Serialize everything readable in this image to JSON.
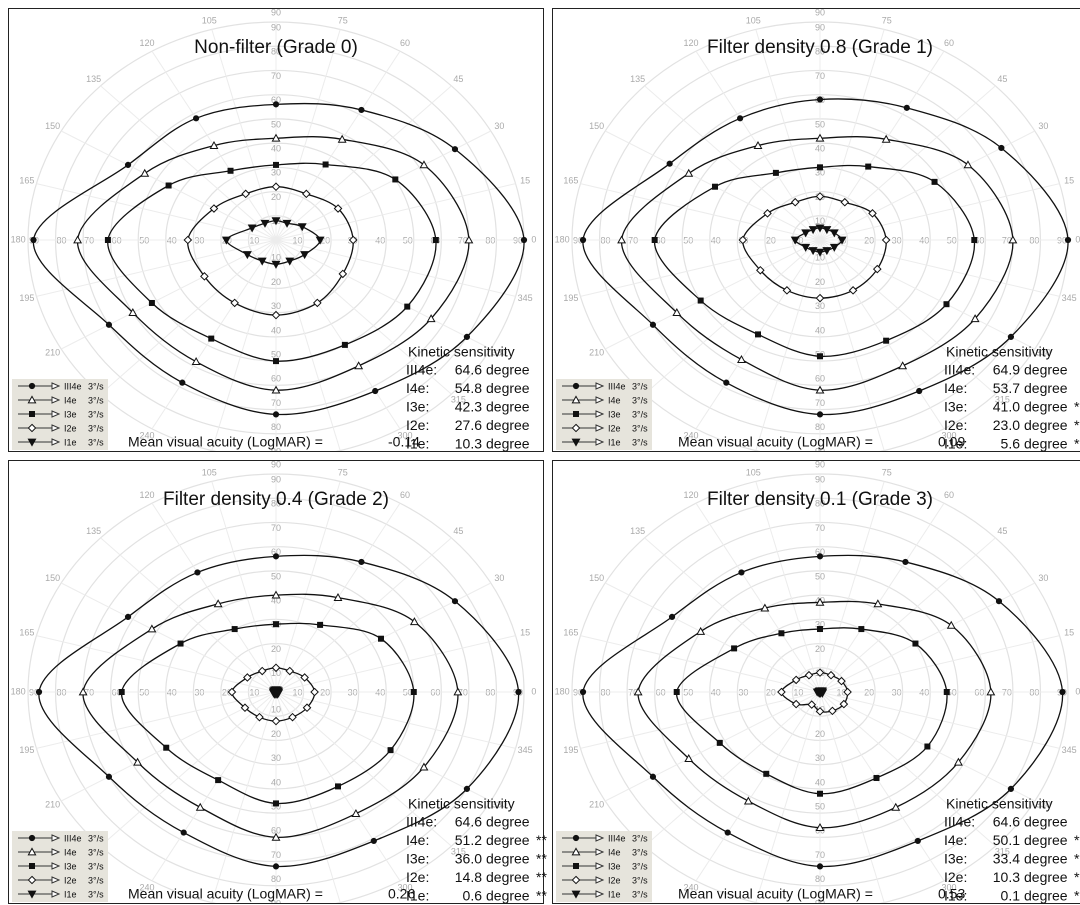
{
  "chart_data": [
    {
      "type": "polar",
      "title": "Non-filter (Grade 0)",
      "theta": [
        0,
        30,
        60,
        90,
        120,
        150,
        180,
        210,
        240,
        270,
        300,
        330
      ],
      "rticks": [
        10,
        20,
        30,
        40,
        50,
        60,
        70,
        80,
        90
      ],
      "rlim": [
        0,
        90
      ],
      "angle_ticks": [
        0,
        15,
        30,
        45,
        60,
        75,
        90,
        105,
        120,
        135,
        150,
        165,
        180,
        195,
        210,
        225,
        240,
        255,
        270,
        285,
        300,
        315,
        330,
        345
      ],
      "series": [
        {
          "name": "III4e",
          "speed": "3°/s",
          "marker": "circle",
          "color": "#111111",
          "values": [
            90,
            75,
            62,
            56,
            58,
            62,
            88,
            70,
            68,
            72,
            72,
            80
          ]
        },
        {
          "name": "I4e",
          "speed": "3°/s",
          "marker": "triangle",
          "color": "#111111",
          "values": [
            70,
            62,
            48,
            42,
            45,
            55,
            72,
            60,
            58,
            62,
            60,
            65
          ]
        },
        {
          "name": "I3e",
          "speed": "3°/s",
          "marker": "square",
          "color": "#111111",
          "values": [
            58,
            50,
            36,
            31,
            33,
            45,
            61,
            52,
            47,
            50,
            50,
            55
          ]
        },
        {
          "name": "I2e",
          "speed": "3°/s",
          "marker": "diamond",
          "color": "#111111",
          "values": [
            28,
            26,
            22,
            22,
            22,
            26,
            32,
            30,
            30,
            31,
            30,
            28
          ]
        },
        {
          "name": "I1e",
          "speed": "3°/s",
          "marker": "itriangle",
          "color": "#111111",
          "values": [
            16,
            11,
            8,
            8,
            8,
            10,
            18,
            12,
            10,
            10,
            10,
            12
          ]
        }
      ],
      "kinetic": {
        "title": "Kinetic sensitivity",
        "unit": "degree",
        "rows": [
          {
            "label": "III4e:",
            "value": 64.6
          },
          {
            "label": "I4e:",
            "value": 54.8
          },
          {
            "label": "I3e:",
            "value": 42.3
          },
          {
            "label": "I2e:",
            "value": 27.6
          },
          {
            "label": "I1e:",
            "value": 10.3
          }
        ]
      },
      "acuity_label": "Mean visual acuity (LogMAR) =",
      "acuity": -0.14
    },
    {
      "type": "polar",
      "title": "Filter density 0.8 (Grade 1)",
      "theta": [
        0,
        30,
        60,
        90,
        120,
        150,
        180,
        210,
        240,
        270,
        300,
        330
      ],
      "rticks": [
        10,
        20,
        30,
        40,
        50,
        60,
        70,
        80,
        90
      ],
      "rlim": [
        0,
        90
      ],
      "angle_ticks": [
        0,
        15,
        30,
        45,
        60,
        75,
        90,
        105,
        120,
        135,
        150,
        165,
        180,
        195,
        210,
        225,
        240,
        255,
        270,
        285,
        300,
        315,
        330,
        345
      ],
      "series": [
        {
          "name": "III4e",
          "speed": "3°/s",
          "marker": "circle",
          "color": "#111111",
          "values": [
            90,
            76,
            63,
            58,
            58,
            63,
            86,
            70,
            68,
            72,
            72,
            80
          ]
        },
        {
          "name": "I4e",
          "speed": "3°/s",
          "marker": "triangle",
          "color": "#111111",
          "values": [
            70,
            62,
            48,
            42,
            45,
            55,
            72,
            60,
            57,
            62,
            60,
            65
          ]
        },
        {
          "name": "I3e",
          "speed": "3°/s",
          "marker": "square",
          "color": "#111111",
          "values": [
            56,
            48,
            35,
            30,
            32,
            44,
            60,
            50,
            45,
            48,
            48,
            53
          ]
        },
        {
          "name": "I2e",
          "speed": "3°/s",
          "marker": "diamond",
          "color": "#111111",
          "values": [
            24,
            22,
            18,
            18,
            18,
            22,
            28,
            25,
            24,
            24,
            24,
            24
          ]
        },
        {
          "name": "I1e",
          "speed": "3°/s",
          "marker": "itriangle",
          "color": "#111111",
          "values": [
            8,
            6,
            5,
            5,
            5,
            6,
            9,
            6,
            5,
            5,
            5,
            6
          ]
        }
      ],
      "kinetic": {
        "title": "Kinetic sensitivity",
        "unit": "degree",
        "rows": [
          {
            "label": "III4e:",
            "value": 64.9
          },
          {
            "label": "I4e:",
            "value": 53.7
          },
          {
            "label": "I3e:",
            "value": 41.0,
            "value_label": "41.0",
            "sig": "**"
          },
          {
            "label": "I2e:",
            "value": 23.0,
            "value_label": "23.0",
            "sig": "**"
          },
          {
            "label": "I1e:",
            "value": 5.6,
            "sig": "**"
          }
        ]
      },
      "acuity_label": "Mean visual acuity (LogMAR) =",
      "acuity": 0.09
    },
    {
      "type": "polar",
      "title": "Filter density 0.4 (Grade 2)",
      "theta": [
        0,
        30,
        60,
        90,
        120,
        150,
        180,
        210,
        240,
        270,
        300,
        330
      ],
      "rticks": [
        10,
        20,
        30,
        40,
        50,
        60,
        70,
        80,
        90
      ],
      "rlim": [
        0,
        90
      ],
      "angle_ticks": [
        0,
        15,
        30,
        45,
        60,
        75,
        90,
        105,
        120,
        135,
        150,
        165,
        180,
        195,
        210,
        225,
        240,
        255,
        270,
        285,
        300,
        315,
        330,
        345
      ],
      "series": [
        {
          "name": "III4e",
          "speed": "3°/s",
          "marker": "circle",
          "color": "#111111",
          "values": [
            88,
            75,
            62,
            56,
            57,
            62,
            86,
            70,
            67,
            72,
            71,
            80
          ]
        },
        {
          "name": "I4e",
          "speed": "3°/s",
          "marker": "triangle",
          "color": "#111111",
          "values": [
            66,
            58,
            45,
            40,
            42,
            52,
            70,
            58,
            55,
            60,
            58,
            62
          ]
        },
        {
          "name": "I3e",
          "speed": "3°/s",
          "marker": "square",
          "color": "#111111",
          "values": [
            50,
            44,
            32,
            28,
            30,
            40,
            56,
            46,
            42,
            46,
            45,
            48
          ]
        },
        {
          "name": "I2e",
          "speed": "3°/s",
          "marker": "diamond",
          "color": "#111111",
          "values": [
            14,
            12,
            10,
            10,
            10,
            12,
            16,
            13,
            12,
            12,
            12,
            13
          ]
        },
        {
          "name": "I1e",
          "speed": "3°/s",
          "marker": "itriangle",
          "color": "#111111",
          "values": [
            1,
            1,
            1,
            1,
            1,
            1,
            1,
            1,
            1,
            1,
            1,
            1
          ]
        }
      ],
      "kinetic": {
        "title": "Kinetic sensitivity",
        "unit": "degree",
        "rows": [
          {
            "label": "III4e:",
            "value": 64.6
          },
          {
            "label": "I4e:",
            "value": 51.2,
            "sig": "**"
          },
          {
            "label": "I3e:",
            "value": 36.0,
            "value_label": "36.0",
            "sig": "**"
          },
          {
            "label": "I2e:",
            "value": 14.8,
            "sig": "**"
          },
          {
            "label": "I1e:",
            "value": 0.6,
            "sig": "**"
          }
        ]
      },
      "acuity_label": "Mean visual acuity (LogMAR) =",
      "acuity": 0.26
    },
    {
      "type": "polar",
      "title": "Filter density 0.1 (Grade 3)",
      "theta": [
        0,
        30,
        60,
        90,
        120,
        150,
        180,
        210,
        240,
        270,
        300,
        330
      ],
      "rticks": [
        10,
        20,
        30,
        40,
        50,
        60,
        70,
        80,
        90
      ],
      "rlim": [
        0,
        90
      ],
      "angle_ticks": [
        0,
        15,
        30,
        45,
        60,
        75,
        90,
        105,
        120,
        135,
        150,
        165,
        180,
        195,
        210,
        225,
        240,
        255,
        270,
        285,
        300,
        315,
        330,
        345
      ],
      "series": [
        {
          "name": "III4e",
          "speed": "3°/s",
          "marker": "circle",
          "color": "#111111",
          "values": [
            88,
            75,
            62,
            56,
            57,
            62,
            86,
            70,
            67,
            72,
            71,
            80
          ]
        },
        {
          "name": "I4e",
          "speed": "3°/s",
          "marker": "triangle",
          "color": "#111111",
          "values": [
            62,
            55,
            42,
            37,
            40,
            50,
            66,
            55,
            52,
            56,
            55,
            58
          ]
        },
        {
          "name": "I3e",
          "speed": "3°/s",
          "marker": "square",
          "color": "#111111",
          "values": [
            46,
            40,
            30,
            26,
            28,
            36,
            52,
            42,
            39,
            42,
            41,
            45
          ]
        },
        {
          "name": "I2e",
          "speed": "3°/s",
          "marker": "diamond",
          "color": "#111111",
          "values": [
            10,
            9,
            8,
            8,
            8,
            10,
            14,
            10,
            6,
            8,
            9,
            10
          ]
        },
        {
          "name": "I1e",
          "speed": "3°/s",
          "marker": "itriangle",
          "color": "#111111",
          "values": [
            1,
            1,
            0.5,
            0.5,
            0.5,
            0.5,
            1,
            0.5,
            0.5,
            0.5,
            0.5,
            1
          ]
        }
      ],
      "kinetic": {
        "title": "Kinetic sensitivity",
        "unit": "degree",
        "rows": [
          {
            "label": "III4e:",
            "value": 64.6
          },
          {
            "label": "I4e:",
            "value": 50.1,
            "sig": "**"
          },
          {
            "label": "I3e:",
            "value": 33.4,
            "sig": "**"
          },
          {
            "label": "I2e:",
            "value": 10.3,
            "sig": "**"
          },
          {
            "label": "I1e:",
            "value": 0.1,
            "sig": "**"
          }
        ]
      },
      "acuity_label": "Mean visual acuity (LogMAR) =",
      "acuity": 0.53
    }
  ]
}
